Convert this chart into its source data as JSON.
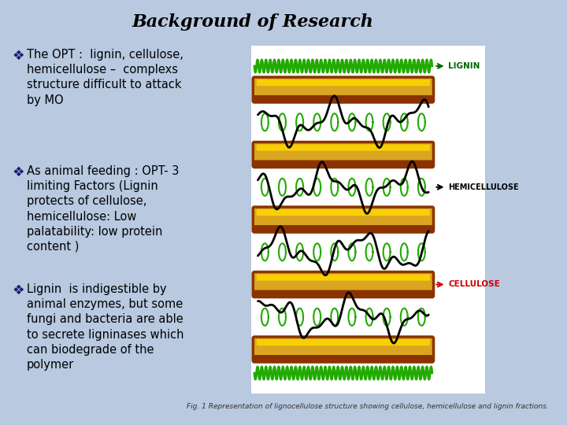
{
  "background_color": "#b8c9e0",
  "title": "Background of Research",
  "title_fontsize": 16,
  "title_color": "#000000",
  "bullet_points": [
    "The OPT :  lignin, cellulose,\nhemicellulose –  complexs\nstructure difficult to attack\nby MO",
    "As animal feeding : OPT- 3\nlimiting Factors (Lignin\nprotects of cellulose,\nhemicellulose: Low\npalatability: low protein\ncontent )",
    "Lignin  is indigestible by\nanimal enzymes, but some\nfungi and bacteria are able\nto secrete ligninases which\ncan biodegrade of the\npolymer"
  ],
  "bullet_color": "#1a1a6e",
  "text_color": "#000000",
  "text_fontsize": 10.5,
  "fig_caption": "Fig. 1 Representation of lignocellulose structure showing cellulose, hemicellulose and lignin fractions.",
  "caption_fontsize": 6.5,
  "diag_bg": "#ffffff",
  "coil_color": "#22aa00",
  "cyl_fill": "#DAA520",
  "cyl_edge": "#8B3300",
  "cyl_highlight": "#FFD700",
  "lignin_label_color": "#006600",
  "hemi_label_color": "#000000",
  "cellulose_label_color": "#cc0000",
  "label_fontsize": 7.5
}
